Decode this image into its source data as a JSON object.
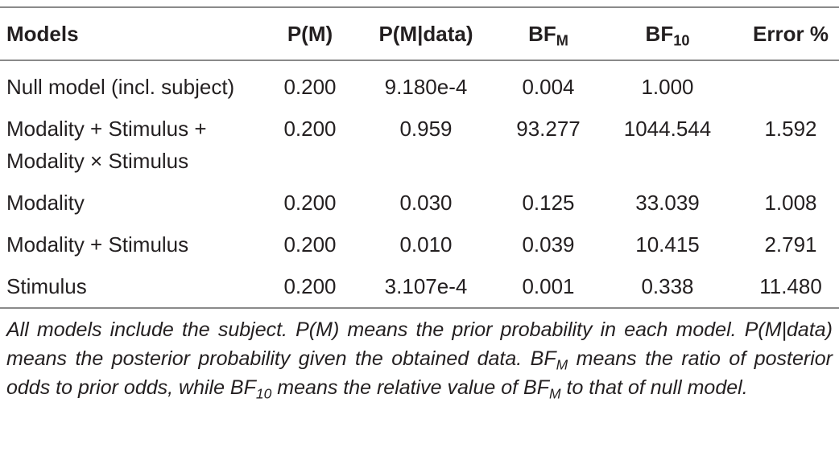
{
  "table": {
    "header": [
      {
        "base": "Models"
      },
      {
        "base": "P(M)"
      },
      {
        "base": "P(M|data)"
      },
      {
        "base": "BF",
        "sub": "M"
      },
      {
        "base": "BF",
        "sub": "10"
      },
      {
        "base": "Error %"
      }
    ],
    "rows": [
      [
        "Null model (incl. subject)",
        "0.200",
        "9.180e-4",
        "0.004",
        "1.000",
        null
      ],
      [
        "Modality + Stimulus + Modality × Stimulus",
        "0.200",
        "0.959",
        "93.277",
        "1044.544",
        "1.592"
      ],
      [
        "Modality",
        "0.200",
        "0.030",
        "0.125",
        "33.039",
        "1.008"
      ],
      [
        "Modality + Stimulus",
        "0.200",
        "0.010",
        "0.039",
        "10.415",
        "2.791"
      ],
      [
        "Stimulus",
        "0.200",
        "3.107e-4",
        "0.001",
        "0.338",
        "11.480"
      ]
    ],
    "note": [
      "All models include the subject. P(M) means the prior probability in each model. P(M|data) means the posterior probability given the obtained data. BF",
      "M",
      " means the ratio of posterior odds to prior odds, while BF",
      "10",
      " means the relative value of BF",
      "M",
      " to that of null model."
    ]
  }
}
